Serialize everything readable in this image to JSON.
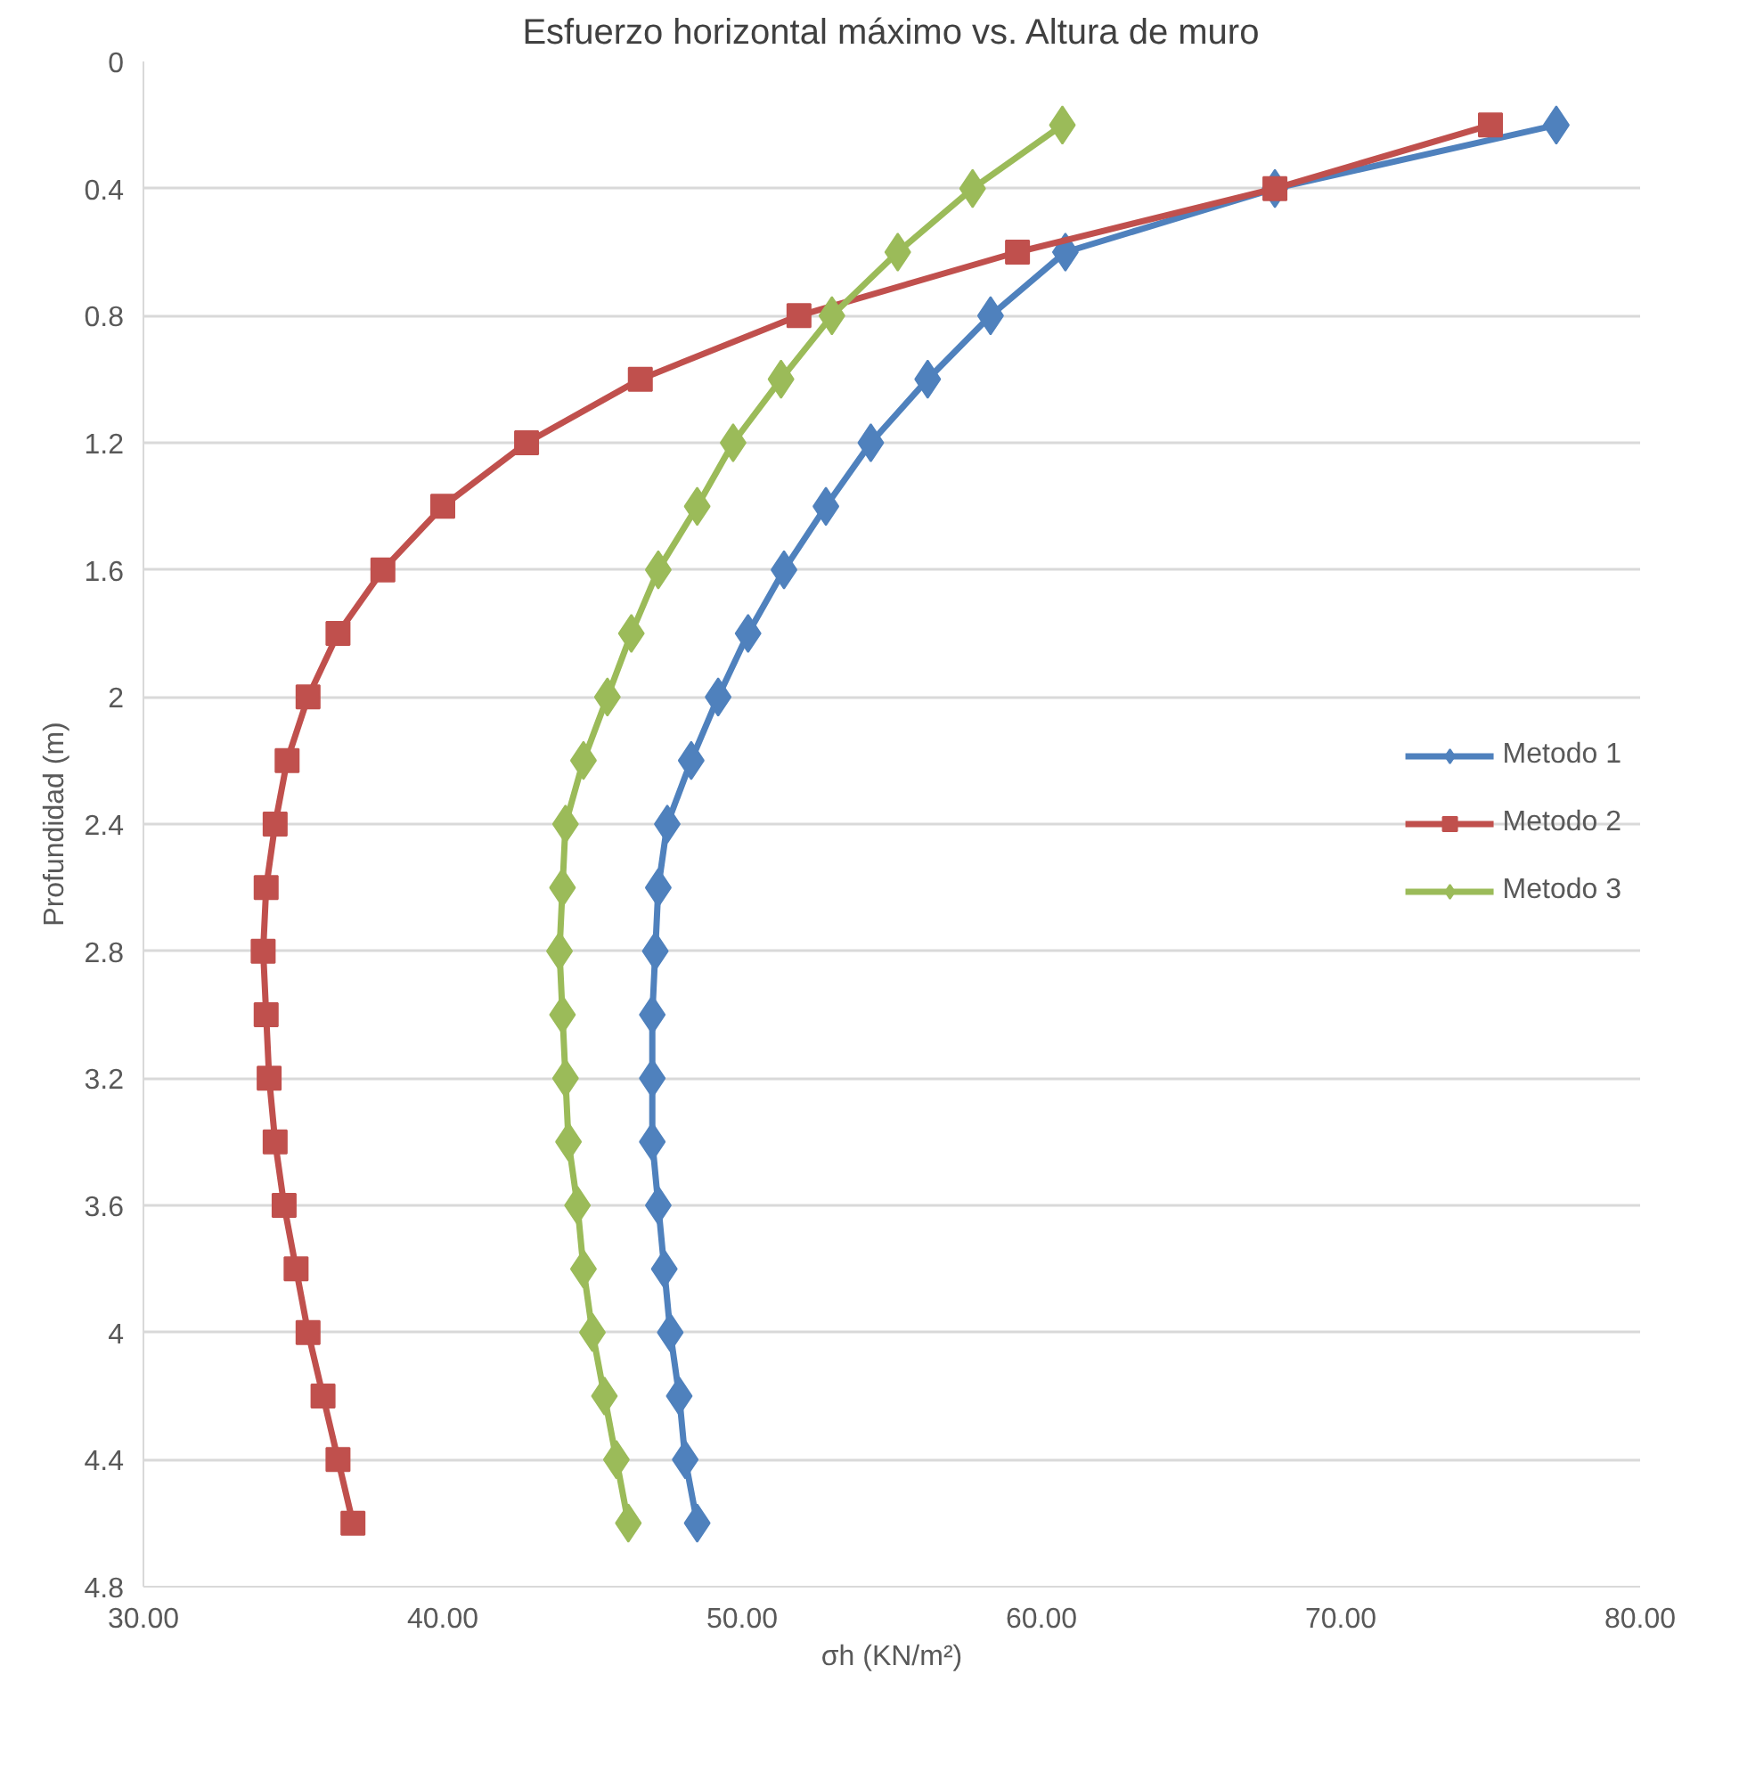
{
  "chart_data": {
    "type": "line",
    "title": "Esfuerzo horizontal máximo vs. Altura de muro",
    "xlabel": "σh (KN/m²)",
    "ylabel": "Profundidad (m)",
    "xlim": [
      30,
      80
    ],
    "xticks": [
      {
        "value": 30,
        "label": "30.00"
      },
      {
        "value": 40,
        "label": "40.00"
      },
      {
        "value": 50,
        "label": "50.00"
      },
      {
        "value": 60,
        "label": "60.00"
      },
      {
        "value": 70,
        "label": "70.00"
      },
      {
        "value": 80,
        "label": "80.00"
      }
    ],
    "ylim": [
      4.8,
      0
    ],
    "yticks": [
      0,
      0.4,
      0.8,
      1.2,
      1.6,
      2,
      2.4,
      2.8,
      3.2,
      3.6,
      4,
      4.4,
      4.8
    ],
    "grid": "y",
    "legend": "right",
    "line_style": "solid",
    "series": [
      {
        "name": "Metodo 1",
        "color": "#4f81bd",
        "marker": "diamond",
        "x": [
          77.2,
          67.8,
          60.8,
          58.3,
          56.2,
          54.3,
          52.8,
          51.4,
          50.2,
          49.2,
          48.3,
          47.5,
          47.2,
          47.1,
          47.0,
          47.0,
          47.0,
          47.2,
          47.4,
          47.6,
          47.9,
          48.1,
          48.5
        ],
        "values": [
          0.2,
          0.4,
          0.6,
          0.8,
          1.0,
          1.2,
          1.4,
          1.6,
          1.8,
          2.0,
          2.2,
          2.4,
          2.6,
          2.8,
          3.0,
          3.2,
          3.4,
          3.6,
          3.8,
          4.0,
          4.2,
          4.4,
          4.6
        ]
      },
      {
        "name": "Metodo 2",
        "color": "#c0504d",
        "marker": "square",
        "x": [
          75.0,
          67.8,
          59.2,
          51.9,
          46.6,
          42.8,
          40.0,
          38.0,
          36.5,
          35.5,
          34.8,
          34.4,
          34.1,
          34.0,
          34.1,
          34.2,
          34.4,
          34.7,
          35.1,
          35.5,
          36.0,
          36.5,
          37.0
        ],
        "values": [
          0.2,
          0.4,
          0.6,
          0.8,
          1.0,
          1.2,
          1.4,
          1.6,
          1.8,
          2.0,
          2.2,
          2.4,
          2.6,
          2.8,
          3.0,
          3.2,
          3.4,
          3.6,
          3.8,
          4.0,
          4.2,
          4.4,
          4.6
        ]
      },
      {
        "name": "Metodo 3",
        "color": "#9bbb59",
        "marker": "diamond",
        "x": [
          60.7,
          57.7,
          55.2,
          53.0,
          51.3,
          49.7,
          48.5,
          47.2,
          46.3,
          45.5,
          44.7,
          44.1,
          44.0,
          43.9,
          44.0,
          44.1,
          44.2,
          44.5,
          44.7,
          45.0,
          45.4,
          45.8,
          46.2
        ],
        "values": [
          0.2,
          0.4,
          0.6,
          0.8,
          1.0,
          1.2,
          1.4,
          1.6,
          1.8,
          2.0,
          2.2,
          2.4,
          2.6,
          2.8,
          3.0,
          3.2,
          3.4,
          3.6,
          3.8,
          4.0,
          4.2,
          4.4,
          4.6
        ]
      }
    ]
  }
}
